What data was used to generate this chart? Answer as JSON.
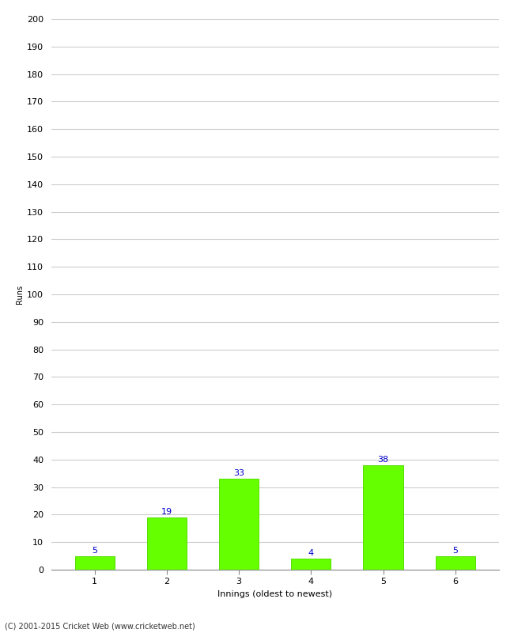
{
  "categories": [
    "1",
    "2",
    "3",
    "4",
    "5",
    "6"
  ],
  "values": [
    5,
    19,
    33,
    4,
    38,
    5
  ],
  "bar_color": "#66ff00",
  "bar_edge_color": "#55dd00",
  "label_color": "#0000cc",
  "xlabel": "Innings (oldest to newest)",
  "ylabel": "Runs",
  "ylim": [
    0,
    200
  ],
  "ytick_step": 10,
  "footer": "(C) 2001-2015 Cricket Web (www.cricketweb.net)",
  "background_color": "#ffffff",
  "grid_color": "#cccccc",
  "label_fontsize": 8,
  "axis_fontsize": 8,
  "ylabel_fontsize": 7,
  "tick_fontsize": 8,
  "bar_width": 0.55
}
